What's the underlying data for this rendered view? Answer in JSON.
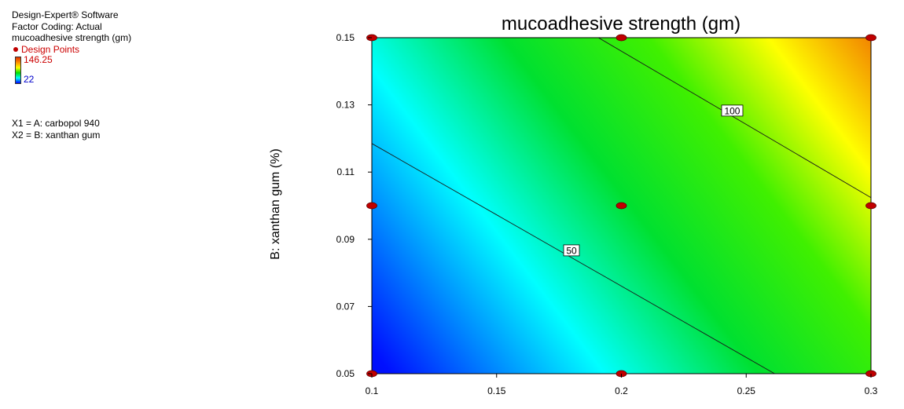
{
  "legend": {
    "software": "Design-Expert® Software",
    "coding": "Factor Coding: Actual",
    "response": "mucoadhesive strength (gm)",
    "design_points_label": "Design Points",
    "max_value": "146.25",
    "min_value": "22",
    "x1": "X1 = A: carbopol 940",
    "x2": "X2 = B: xanthan gum"
  },
  "chart_data": {
    "type": "heatmap",
    "title": "mucoadhesive strength (gm)",
    "xlabel": "",
    "ylabel": "B: xanthan gum (%)",
    "xlim": [
      0.1,
      0.3
    ],
    "ylim": [
      0.05,
      0.15
    ],
    "x_ticks": [
      "0.1",
      "0.15",
      "0.2",
      "0.25",
      "0.3"
    ],
    "y_ticks": [
      "0.05",
      "0.07",
      "0.09",
      "0.11",
      "0.13",
      "0.15"
    ],
    "color_range": [
      22,
      146.25
    ],
    "contours": [
      {
        "level": 50,
        "label": "50",
        "label_at": [
          0.18,
          0.0867
        ],
        "points": [
          [
            0.1,
            0.1185
          ],
          [
            0.2614,
            0.05
          ]
        ]
      },
      {
        "level": 100,
        "label": "100",
        "label_at": [
          0.2444,
          0.1283
        ],
        "points": [
          [
            0.1908,
            0.15
          ],
          [
            0.3,
            0.1024
          ]
        ]
      }
    ],
    "design_points": [
      [
        0.1,
        0.05
      ],
      [
        0.2,
        0.05
      ],
      [
        0.3,
        0.05
      ],
      [
        0.1,
        0.1
      ],
      [
        0.2,
        0.1
      ],
      [
        0.3,
        0.1
      ],
      [
        0.1,
        0.15
      ],
      [
        0.2,
        0.15
      ],
      [
        0.3,
        0.15
      ]
    ]
  }
}
